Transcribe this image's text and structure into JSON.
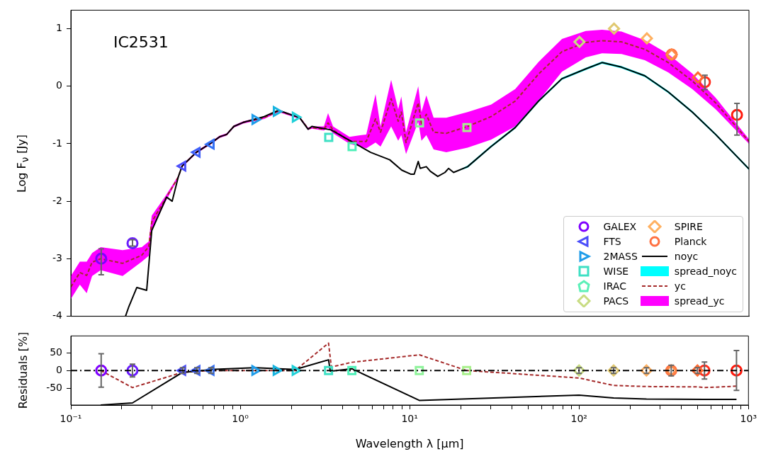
{
  "chart_data": [
    {
      "type": "scatter",
      "title": "IC2531",
      "ylabel": "Log F$_{ν}$ [Jy]",
      "log": "x",
      "xlim": [
        0.1,
        1000
      ],
      "ylim": [
        -4,
        1.32
      ],
      "yticks": [
        -4,
        -3,
        -2,
        -1,
        0,
        1
      ],
      "tick_labels": "y",
      "grid": false,
      "legend": "bottom right",
      "series": [
        {
          "name": "GALEX",
          "marker": "circle",
          "color": "#7f00ff",
          "colors": [
            "#7f00ff",
            "#6a1cfe"
          ],
          "x": [
            0.151,
            0.231
          ],
          "values": [
            -3.0,
            -2.73
          ],
          "errors": [
            [
              -3.28,
              -2.83
            ],
            [
              -2.78,
              -2.67
            ]
          ]
        },
        {
          "name": "FTS",
          "marker": "triangle-left",
          "color": "#4a4dfa",
          "colors": [
            "#4a4dfa",
            "#3e5ff8",
            "#3370f5"
          ],
          "x": [
            0.457,
            0.555,
            0.672
          ],
          "values": [
            -1.39,
            -1.15,
            -1.01
          ]
        },
        {
          "name": "2MASS",
          "marker": "triangle-right",
          "color": "#1e9ce9",
          "colors": [
            "#1e9ce9",
            "#18b4e0",
            "#20d0d8"
          ],
          "x": [
            1.22,
            1.63,
            2.11
          ],
          "values": [
            -0.58,
            -0.44,
            -0.54
          ]
        },
        {
          "name": "WISE",
          "marker": "square",
          "color": "#3ee0c4",
          "colors": [
            "#3ee0c4",
            "#4ef0b8",
            "#8ef39a",
            "#a8f08c"
          ],
          "x": [
            3.32,
            4.56,
            11.4,
            21.7
          ],
          "values": [
            -0.89,
            -1.05,
            -0.64,
            -0.72
          ]
        },
        {
          "name": "IRAC",
          "marker": "pentagon",
          "color": "#5cf0b8"
        },
        {
          "name": "PACS",
          "marker": "diamond",
          "color": "#c8dc82",
          "colors": [
            "#c8dc82",
            "#e0c870"
          ],
          "x": [
            100,
            160
          ],
          "values": [
            0.77,
            1.0
          ]
        },
        {
          "name": "SPIRE",
          "marker": "diamond",
          "color": "#ffb060",
          "colors": [
            "#ffb060",
            "#ff8a48",
            "#ff6a30"
          ],
          "x": [
            250,
            350,
            500
          ],
          "values": [
            0.83,
            0.55,
            0.15
          ]
        },
        {
          "name": "Planck",
          "marker": "circle",
          "color": "#ff7040",
          "colors": [
            "#ff7040",
            "#ff3020",
            "#ff1a0d"
          ],
          "x": [
            350,
            550,
            850
          ],
          "values": [
            0.55,
            0.07,
            -0.5
          ],
          "errors": [
            null,
            [
              -0.06,
              0.19
            ],
            [
              -0.85,
              -0.3
            ]
          ]
        },
        {
          "name": "noyc",
          "type": "line",
          "color": "#000000",
          "line_style": "solid",
          "x": [
            0.21,
            0.22,
            0.245,
            0.28,
            0.3,
            0.367,
            0.396,
            0.43,
            0.453,
            0.55,
            0.67,
            0.755,
            0.83,
            0.915,
            1.04,
            1.38,
            1.68,
            2.24,
            2.51,
            2.64,
            3.42,
            4.27,
            5.86,
            7.6,
            8.95,
            10.1,
            10.6,
            11.2,
            11.5,
            12.5,
            13.2,
            14.6,
            16.1,
            16.9,
            18.1,
            21.9,
            30.1,
            41.8,
            57.4,
            78.9,
            109,
            136,
            177,
            243,
            334,
            463,
            636,
            1000
          ],
          "values": [
            -4.0,
            -3.83,
            -3.5,
            -3.55,
            -2.51,
            -1.93,
            -2.0,
            -1.58,
            -1.39,
            -1.15,
            -0.99,
            -0.88,
            -0.84,
            -0.7,
            -0.63,
            -0.53,
            -0.42,
            -0.55,
            -0.75,
            -0.7,
            -0.76,
            -0.92,
            -1.15,
            -1.28,
            -1.46,
            -1.53,
            -1.53,
            -1.31,
            -1.43,
            -1.4,
            -1.48,
            -1.57,
            -1.5,
            -1.43,
            -1.5,
            -1.4,
            -1.05,
            -0.72,
            -0.26,
            0.13,
            0.3,
            0.41,
            0.33,
            0.18,
            -0.1,
            -0.45,
            -0.84,
            -1.44
          ],
          "lower": [
            -4.0,
            -3.83,
            -3.5,
            -3.55,
            -2.51,
            -1.93,
            -2.0,
            -1.58,
            -1.39,
            -1.15,
            -0.99,
            -0.88,
            -0.84,
            -0.7,
            -0.63,
            -0.53,
            -0.42,
            -0.55,
            -0.75,
            -0.7,
            -0.76,
            -0.92,
            -1.15,
            -1.28,
            -1.46,
            -1.53,
            -1.53,
            -1.31,
            -1.43,
            -1.4,
            -1.48,
            -1.57,
            -1.5,
            -1.43,
            -1.5,
            -1.42,
            -1.07,
            -0.74,
            -0.28,
            0.11,
            0.28,
            0.39,
            0.31,
            0.16,
            -0.12,
            -0.47,
            -0.86,
            -1.46
          ],
          "upper": [
            -4.0,
            -3.83,
            -3.5,
            -3.55,
            -2.51,
            -1.93,
            -2.0,
            -1.58,
            -1.39,
            -1.15,
            -0.99,
            -0.88,
            -0.84,
            -0.7,
            -0.63,
            -0.53,
            -0.42,
            -0.55,
            -0.75,
            -0.7,
            -0.76,
            -0.92,
            -1.15,
            -1.28,
            -1.46,
            -1.53,
            -1.53,
            -1.31,
            -1.43,
            -1.4,
            -1.48,
            -1.57,
            -1.5,
            -1.43,
            -1.5,
            -1.38,
            -1.03,
            -0.7,
            -0.24,
            0.15,
            0.32,
            0.43,
            0.35,
            0.2,
            -0.08,
            -0.43,
            -0.82,
            -1.42
          ]
        },
        {
          "name": "spread_noyc",
          "type": "area",
          "color": "#00ffff"
        },
        {
          "name": "yc",
          "type": "line",
          "color": "#a52a2a",
          "line_style": "dashed",
          "x": [
            0.1,
            0.113,
            0.124,
            0.1335,
            0.15,
            0.202,
            0.262,
            0.288,
            0.3,
            0.36,
            0.43,
            0.453,
            0.55,
            0.67,
            0.755,
            0.83,
            0.915,
            1.04,
            1.38,
            1.68,
            2.24,
            2.51,
            2.64,
            3.11,
            3.29,
            3.52,
            4.4,
            5.53,
            6.27,
            6.71,
            7.75,
            8.53,
            8.9,
            9.49,
            11.2,
            11.7,
            12.5,
            13.8,
            16.4,
            21.9,
            30.1,
            41.8,
            57.4,
            78.9,
            109,
            136,
            177,
            243,
            334,
            463,
            636,
            1000
          ],
          "values": [
            -3.49,
            -3.24,
            -3.29,
            -3.06,
            -3.0,
            -3.08,
            -2.94,
            -2.79,
            -2.36,
            -1.97,
            -1.58,
            -1.39,
            -1.15,
            -0.99,
            -0.88,
            -0.84,
            -0.7,
            -0.63,
            -0.55,
            -0.43,
            -0.55,
            -0.74,
            -0.72,
            -0.75,
            -0.64,
            -0.76,
            -0.96,
            -0.96,
            -0.57,
            -0.8,
            -0.22,
            -0.61,
            -0.45,
            -0.98,
            -0.29,
            -0.65,
            -0.49,
            -0.8,
            -0.82,
            -0.7,
            -0.53,
            -0.26,
            0.21,
            0.6,
            0.76,
            0.79,
            0.77,
            0.64,
            0.41,
            0.09,
            -0.29,
            -0.96
          ],
          "lower": [
            -3.7,
            -3.45,
            -3.6,
            -3.3,
            -3.2,
            -3.3,
            -3.05,
            -2.95,
            -2.5,
            -2.02,
            -1.6,
            -1.41,
            -1.17,
            -1.01,
            -0.9,
            -0.86,
            -0.72,
            -0.65,
            -0.57,
            -0.45,
            -0.57,
            -0.76,
            -0.74,
            -0.77,
            -0.72,
            -0.82,
            -1.0,
            -1.08,
            -0.98,
            -1.05,
            -0.7,
            -0.95,
            -0.85,
            -1.18,
            -0.62,
            -0.95,
            -0.85,
            -1.1,
            -1.15,
            -1.07,
            -0.93,
            -0.7,
            -0.26,
            0.25,
            0.5,
            0.57,
            0.56,
            0.45,
            0.24,
            -0.05,
            -0.4,
            -1.0
          ],
          "upper": [
            -3.3,
            -3.05,
            -3.05,
            -2.9,
            -2.8,
            -2.85,
            -2.8,
            -2.7,
            -2.25,
            -1.92,
            -1.56,
            -1.37,
            -1.13,
            -0.97,
            -0.86,
            -0.82,
            -0.68,
            -0.61,
            -0.53,
            -0.41,
            -0.53,
            -0.72,
            -0.7,
            -0.7,
            -0.47,
            -0.7,
            -0.88,
            -0.84,
            -0.14,
            -0.7,
            0.11,
            -0.4,
            -0.18,
            -0.8,
            0.0,
            -0.45,
            -0.16,
            -0.55,
            -0.55,
            -0.45,
            -0.32,
            -0.05,
            0.42,
            0.82,
            0.96,
            0.98,
            0.95,
            0.8,
            0.56,
            0.22,
            -0.2,
            -0.92
          ]
        },
        {
          "name": "spread_yc",
          "type": "area",
          "color": "#ff00ff"
        }
      ]
    },
    {
      "type": "scatter",
      "xlabel": "Wavelength λ [μm]",
      "ylabel": "Residuals [%]",
      "log": "x",
      "xlim": [
        0.1,
        1000
      ],
      "xticks": [
        {
          "value": 0.1,
          "label": "10⁻¹"
        },
        {
          "value": 0.2,
          "label": null
        },
        {
          "value": 0.3,
          "label": null
        },
        {
          "value": 0.4,
          "label": null
        },
        {
          "value": 0.5,
          "label": null
        },
        {
          "value": 0.6,
          "label": null
        },
        {
          "value": 0.7,
          "label": null
        },
        {
          "value": 0.8,
          "label": null
        },
        {
          "value": 0.9,
          "label": null
        },
        {
          "value": 1,
          "label": "10⁰"
        },
        {
          "value": 2,
          "label": null
        },
        {
          "value": 3,
          "label": null
        },
        {
          "value": 4,
          "label": null
        },
        {
          "value": 5,
          "label": null
        },
        {
          "value": 6,
          "label": null
        },
        {
          "value": 7,
          "label": null
        },
        {
          "value": 8,
          "label": null
        },
        {
          "value": 9,
          "label": null
        },
        {
          "value": 10,
          "label": "10¹"
        },
        {
          "value": 20,
          "label": null
        },
        {
          "value": 30,
          "label": null
        },
        {
          "value": 40,
          "label": null
        },
        {
          "value": 50,
          "label": null
        },
        {
          "value": 60,
          "label": null
        },
        {
          "value": 70,
          "label": null
        },
        {
          "value": 80,
          "label": null
        },
        {
          "value": 90,
          "label": null
        },
        {
          "value": 100,
          "label": "10²"
        },
        {
          "value": 200,
          "label": null
        },
        {
          "value": 300,
          "label": null
        },
        {
          "value": 400,
          "label": null
        },
        {
          "value": 500,
          "label": null
        },
        {
          "value": 600,
          "label": null
        },
        {
          "value": 700,
          "label": null
        },
        {
          "value": 800,
          "label": null
        },
        {
          "value": 900,
          "label": null
        },
        {
          "value": 1000,
          "label": "10³"
        }
      ],
      "ylim": [
        -97,
        97
      ],
      "yticks": [
        -50,
        0,
        50
      ],
      "grid": false,
      "ref_lines": [
        {
          "axis": "y",
          "value": 0,
          "color": "#000000",
          "line_style": "dashdot"
        }
      ],
      "series": [
        {
          "type": "line",
          "color": "#000000",
          "line_style": "solid",
          "x": [
            0.15,
            0.231,
            0.457,
            0.555,
            0.672,
            1.22,
            2.11,
            3.32,
            3.4,
            4.56,
            11.4,
            100,
            160,
            250,
            550,
            850
          ],
          "values": [
            -97,
            -91,
            -5,
            -2,
            3,
            8,
            3,
            30,
            -2,
            5,
            -84,
            -69,
            -77,
            -80,
            -81,
            -81
          ]
        },
        {
          "type": "line",
          "color": "#a52a2a",
          "line_style": "dashed",
          "x": [
            0.15,
            0.231,
            0.457,
            0.672,
            2.11,
            3.32,
            3.45,
            4.56,
            11.4,
            21.7,
            100,
            160,
            250,
            500,
            550,
            850
          ],
          "values": [
            0,
            -48,
            -5,
            0,
            0,
            77,
            10,
            23,
            44,
            0,
            -21,
            -42,
            -45,
            -46,
            -48,
            -44
          ]
        },
        {
          "marker": "circle",
          "color": "#7f00ff",
          "colors": [
            "#7f00ff",
            "#6a1cfe"
          ],
          "x": [
            0.151,
            0.231
          ],
          "values": [
            0,
            0
          ],
          "errors": [
            47,
            18
          ]
        },
        {
          "marker": "triangle-left",
          "color": "#4a4dfa",
          "colors": [
            "#4a4dfa",
            "#3e5ff8",
            "#3370f5"
          ],
          "x": [
            0.457,
            0.555,
            0.672
          ],
          "values": [
            0,
            0,
            0
          ],
          "errors": [
            8,
            8,
            8
          ]
        },
        {
          "marker": "triangle-right",
          "color": "#1e9ce9",
          "colors": [
            "#1e9ce9",
            "#18b4e0",
            "#20d0d8"
          ],
          "x": [
            1.22,
            1.63,
            2.11
          ],
          "values": [
            0,
            0,
            0
          ]
        },
        {
          "marker": "square",
          "color": "#3ee0c4",
          "colors": [
            "#3ee0c4",
            "#4ef0b8",
            "#8ef39a",
            "#a8f08c"
          ],
          "x": [
            3.32,
            4.56,
            11.4,
            21.7
          ],
          "values": [
            0,
            0,
            0,
            0
          ]
        },
        {
          "marker": "diamond",
          "color": "#c8dc82",
          "colors": [
            "#c8dc82",
            "#e0c870"
          ],
          "x": [
            100,
            160
          ],
          "values": [
            0,
            0
          ],
          "errors": [
            8,
            8
          ]
        },
        {
          "marker": "diamond",
          "color": "#ffb060",
          "colors": [
            "#ffb060",
            "#ff8a48",
            "#ff6a30"
          ],
          "x": [
            250,
            350,
            500
          ],
          "values": [
            0,
            0,
            0
          ],
          "errors": [
            8,
            15,
            8
          ]
        },
        {
          "marker": "circle",
          "color": "#ff7040",
          "colors": [
            "#ff7040",
            "#ff3020",
            "#ff1a0d"
          ],
          "x": [
            350,
            550,
            850
          ],
          "values": [
            0,
            0,
            0
          ],
          "errors": [
            null,
            24,
            56
          ]
        }
      ]
    }
  ]
}
